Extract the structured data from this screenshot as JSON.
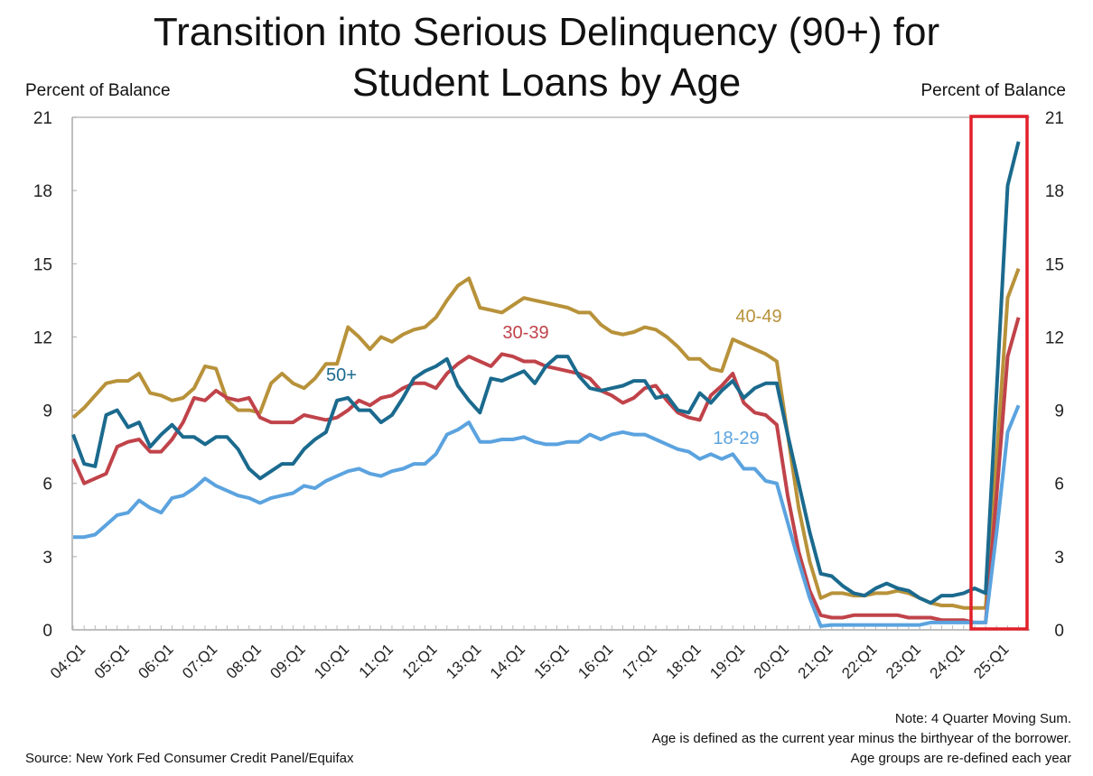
{
  "chart_data": {
    "type": "line",
    "title": "Transition into Serious Delinquency (90+) for Student Loans by Age",
    "title_lines": [
      "Transition into Serious Delinquency (90+) for",
      "Student Loans by Age"
    ],
    "ylabel_left": "Percent of Balance",
    "ylabel_right": "Percent of Balance",
    "ylim": [
      0,
      21
    ],
    "yticks": [
      0,
      3,
      6,
      9,
      12,
      15,
      18,
      21
    ],
    "x_start": "04:Q1",
    "x_labels": [
      "04:Q1",
      "05:Q1",
      "06:Q1",
      "07:Q1",
      "08:Q1",
      "09:Q1",
      "10:Q1",
      "11:Q1",
      "12:Q1",
      "13:Q1",
      "14:Q1",
      "15:Q1",
      "16:Q1",
      "17:Q1",
      "18:Q1",
      "19:Q1",
      "20:Q1",
      "21:Q1",
      "22:Q1",
      "23:Q1",
      "24:Q1",
      "25:Q1"
    ],
    "highlight": {
      "from_index": 83,
      "to_index": 86,
      "color": "#E0202A"
    },
    "series": [
      {
        "name": "40-49",
        "color": "#B8923A",
        "values": [
          8.7,
          9.1,
          9.6,
          10.1,
          10.2,
          10.2,
          10.5,
          9.7,
          9.6,
          9.4,
          9.5,
          9.9,
          10.8,
          10.7,
          9.4,
          9.0,
          9.0,
          8.9,
          10.1,
          10.5,
          10.1,
          9.9,
          10.3,
          10.9,
          10.9,
          12.4,
          12.0,
          11.5,
          12.0,
          11.8,
          12.1,
          12.3,
          12.4,
          12.8,
          13.5,
          14.1,
          14.4,
          13.2,
          13.1,
          13.0,
          13.3,
          13.6,
          13.5,
          13.4,
          13.3,
          13.2,
          13.0,
          13.0,
          12.5,
          12.2,
          12.1,
          12.2,
          12.4,
          12.3,
          12.0,
          11.6,
          11.1,
          11.1,
          10.7,
          10.6,
          11.9,
          11.7,
          11.5,
          11.3,
          11.0,
          8.0,
          5.0,
          2.8,
          1.3,
          1.5,
          1.5,
          1.4,
          1.4,
          1.5,
          1.5,
          1.6,
          1.5,
          1.3,
          1.1,
          1.0,
          1.0,
          0.9,
          0.9,
          0.9,
          7.0,
          13.6,
          14.8
        ]
      },
      {
        "name": "30-39",
        "color": "#C0434A",
        "values": [
          7.0,
          6.0,
          6.2,
          6.4,
          7.5,
          7.7,
          7.8,
          7.3,
          7.3,
          7.8,
          8.5,
          9.5,
          9.4,
          9.8,
          9.5,
          9.4,
          9.5,
          8.7,
          8.5,
          8.5,
          8.5,
          8.8,
          8.7,
          8.6,
          8.7,
          9.0,
          9.4,
          9.2,
          9.5,
          9.6,
          9.9,
          10.1,
          10.1,
          9.9,
          10.5,
          10.9,
          11.2,
          11.0,
          10.8,
          11.3,
          11.2,
          11.0,
          11.0,
          10.8,
          10.7,
          10.6,
          10.5,
          10.3,
          9.8,
          9.6,
          9.3,
          9.5,
          9.9,
          10.0,
          9.4,
          8.9,
          8.7,
          8.6,
          9.6,
          10.0,
          10.5,
          9.3,
          8.9,
          8.8,
          8.4,
          5.5,
          3.2,
          1.6,
          0.6,
          0.5,
          0.5,
          0.6,
          0.6,
          0.6,
          0.6,
          0.6,
          0.5,
          0.5,
          0.5,
          0.4,
          0.4,
          0.4,
          0.3,
          0.3,
          5.5,
          11.2,
          12.8
        ]
      },
      {
        "name": "50+",
        "color": "#1B6A8E",
        "values": [
          8.0,
          6.8,
          6.7,
          8.8,
          9.0,
          8.3,
          8.5,
          7.5,
          8.0,
          8.4,
          7.9,
          7.9,
          7.6,
          7.9,
          7.9,
          7.4,
          6.6,
          6.2,
          6.5,
          6.8,
          6.8,
          7.4,
          7.8,
          8.1,
          9.4,
          9.5,
          9.0,
          9.0,
          8.5,
          8.8,
          9.5,
          10.3,
          10.6,
          10.8,
          11.1,
          10.0,
          9.4,
          8.9,
          10.3,
          10.2,
          10.4,
          10.6,
          10.1,
          10.8,
          11.2,
          11.2,
          10.4,
          9.9,
          9.8,
          9.9,
          10.0,
          10.2,
          10.2,
          9.5,
          9.6,
          9.0,
          8.9,
          9.7,
          9.3,
          9.8,
          10.2,
          9.5,
          9.9,
          10.1,
          10.1,
          8.0,
          6.0,
          4.0,
          2.3,
          2.2,
          1.8,
          1.5,
          1.4,
          1.7,
          1.9,
          1.7,
          1.6,
          1.3,
          1.1,
          1.4,
          1.4,
          1.5,
          1.7,
          1.5,
          9.8,
          18.2,
          20.0
        ]
      },
      {
        "name": "18-29",
        "color": "#5BA3DF",
        "values": [
          3.8,
          3.8,
          3.9,
          4.3,
          4.7,
          4.8,
          5.3,
          5.0,
          4.8,
          5.4,
          5.5,
          5.8,
          6.2,
          5.9,
          5.7,
          5.5,
          5.4,
          5.2,
          5.4,
          5.5,
          5.6,
          5.9,
          5.8,
          6.1,
          6.3,
          6.5,
          6.6,
          6.4,
          6.3,
          6.5,
          6.6,
          6.8,
          6.8,
          7.2,
          8.0,
          8.2,
          8.5,
          7.7,
          7.7,
          7.8,
          7.8,
          7.9,
          7.7,
          7.6,
          7.6,
          7.7,
          7.7,
          8.0,
          7.8,
          8.0,
          8.1,
          8.0,
          8.0,
          7.8,
          7.6,
          7.4,
          7.3,
          7.0,
          7.2,
          7.0,
          7.2,
          6.6,
          6.6,
          6.1,
          6.0,
          4.4,
          2.8,
          1.3,
          0.15,
          0.2,
          0.2,
          0.2,
          0.2,
          0.2,
          0.2,
          0.2,
          0.2,
          0.2,
          0.3,
          0.3,
          0.3,
          0.3,
          0.3,
          0.3,
          4.0,
          8.1,
          9.2
        ]
      }
    ],
    "notes": [
      "Note: 4 Quarter Moving Sum.",
      "Age is defined as the current year minus the birthyear of the borrower.",
      "Age groups are re-defined each year"
    ],
    "source": "Source: New York Fed Consumer Credit Panel/Equifax"
  }
}
